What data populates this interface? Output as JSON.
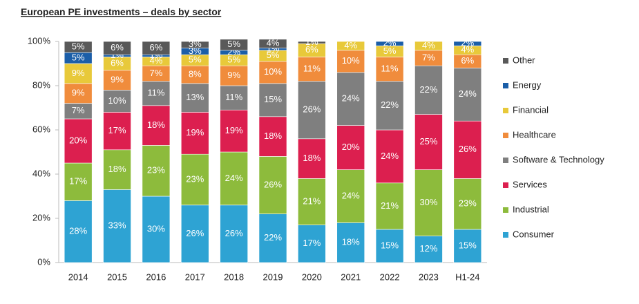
{
  "chart_data": {
    "type": "stacked_bar",
    "title": "European PE investments – deals by sector",
    "categories": [
      "2014",
      "2015",
      "2016",
      "2017",
      "2018",
      "2019",
      "2020",
      "2021",
      "2022",
      "2023",
      "H1-24"
    ],
    "ylim": [
      0,
      100
    ],
    "yticks": [
      {
        "value": 0,
        "label": "0%"
      },
      {
        "value": 20,
        "label": "20%"
      },
      {
        "value": 40,
        "label": "40%"
      },
      {
        "value": 60,
        "label": "60%"
      },
      {
        "value": 80,
        "label": "80%"
      },
      {
        "value": 100,
        "label": "100%"
      }
    ],
    "legend": "right",
    "series": [
      {
        "name": "Consumer",
        "color": "#2ea3d3",
        "values": [
          28,
          33,
          30,
          26,
          26,
          22,
          17,
          18,
          15,
          12,
          15
        ],
        "value_labels": [
          "28%",
          "33%",
          "30%",
          "26%",
          "26%",
          "22%",
          "17%",
          "18%",
          "15%",
          "12%",
          "15%"
        ]
      },
      {
        "name": "Industrial",
        "color": "#8dbb3c",
        "values": [
          17,
          18,
          23,
          23,
          24,
          26,
          21,
          24,
          21,
          30,
          23
        ],
        "value_labels": [
          "17%",
          "18%",
          "23%",
          "23%",
          "24%",
          "26%",
          "21%",
          "24%",
          "21%",
          "30%",
          "23%"
        ]
      },
      {
        "name": "Services",
        "color": "#dc1f4f",
        "values": [
          20,
          17,
          18,
          19,
          19,
          18,
          18,
          20,
          24,
          25,
          26
        ],
        "value_labels": [
          "20%",
          "17%",
          "18%",
          "19%",
          "19%",
          "18%",
          "18%",
          "20%",
          "24%",
          "25%",
          "26%"
        ]
      },
      {
        "name": "Software & Technology",
        "color": "#7f7f7f",
        "values": [
          7,
          10,
          11,
          13,
          11,
          15,
          26,
          24,
          22,
          22,
          24
        ],
        "value_labels": [
          "7%",
          "10%",
          "11%",
          "13%",
          "11%",
          "15%",
          "26%",
          "24%",
          "22%",
          "22%",
          "24%"
        ]
      },
      {
        "name": "Healthcare",
        "color": "#f08c3c",
        "values": [
          9,
          9,
          7,
          8,
          9,
          10,
          11,
          10,
          11,
          7,
          6
        ],
        "value_labels": [
          "9%",
          "9%",
          "7%",
          "8%",
          "9%",
          "10%",
          "11%",
          "10%",
          "11%",
          "7%",
          "6%"
        ]
      },
      {
        "name": "Financial",
        "color": "#e8c93a",
        "values": [
          9,
          6,
          4,
          5,
          5,
          5,
          6,
          4,
          5,
          4,
          4
        ],
        "value_labels": [
          "9%",
          "6%",
          "4%",
          "5%",
          "5%",
          "5%",
          "6%",
          "4%",
          "5%",
          "4%",
          "4%"
        ]
      },
      {
        "name": "Energy",
        "color": "#1b5ea8",
        "values": [
          5,
          1,
          1,
          3,
          2,
          1,
          0,
          0,
          2,
          0,
          2
        ],
        "value_labels": [
          "5%",
          "1%",
          "1%",
          "3%",
          "2%",
          "1%",
          null,
          null,
          "2%",
          null,
          "2%"
        ]
      },
      {
        "name": "Other",
        "color": "#595959",
        "values": [
          5,
          6,
          6,
          3,
          5,
          4,
          1,
          0,
          0,
          0,
          0
        ],
        "value_labels": [
          "5%",
          "6%",
          "6%",
          "3%",
          "5%",
          "4%",
          "1%",
          null,
          null,
          null,
          null
        ]
      }
    ]
  }
}
